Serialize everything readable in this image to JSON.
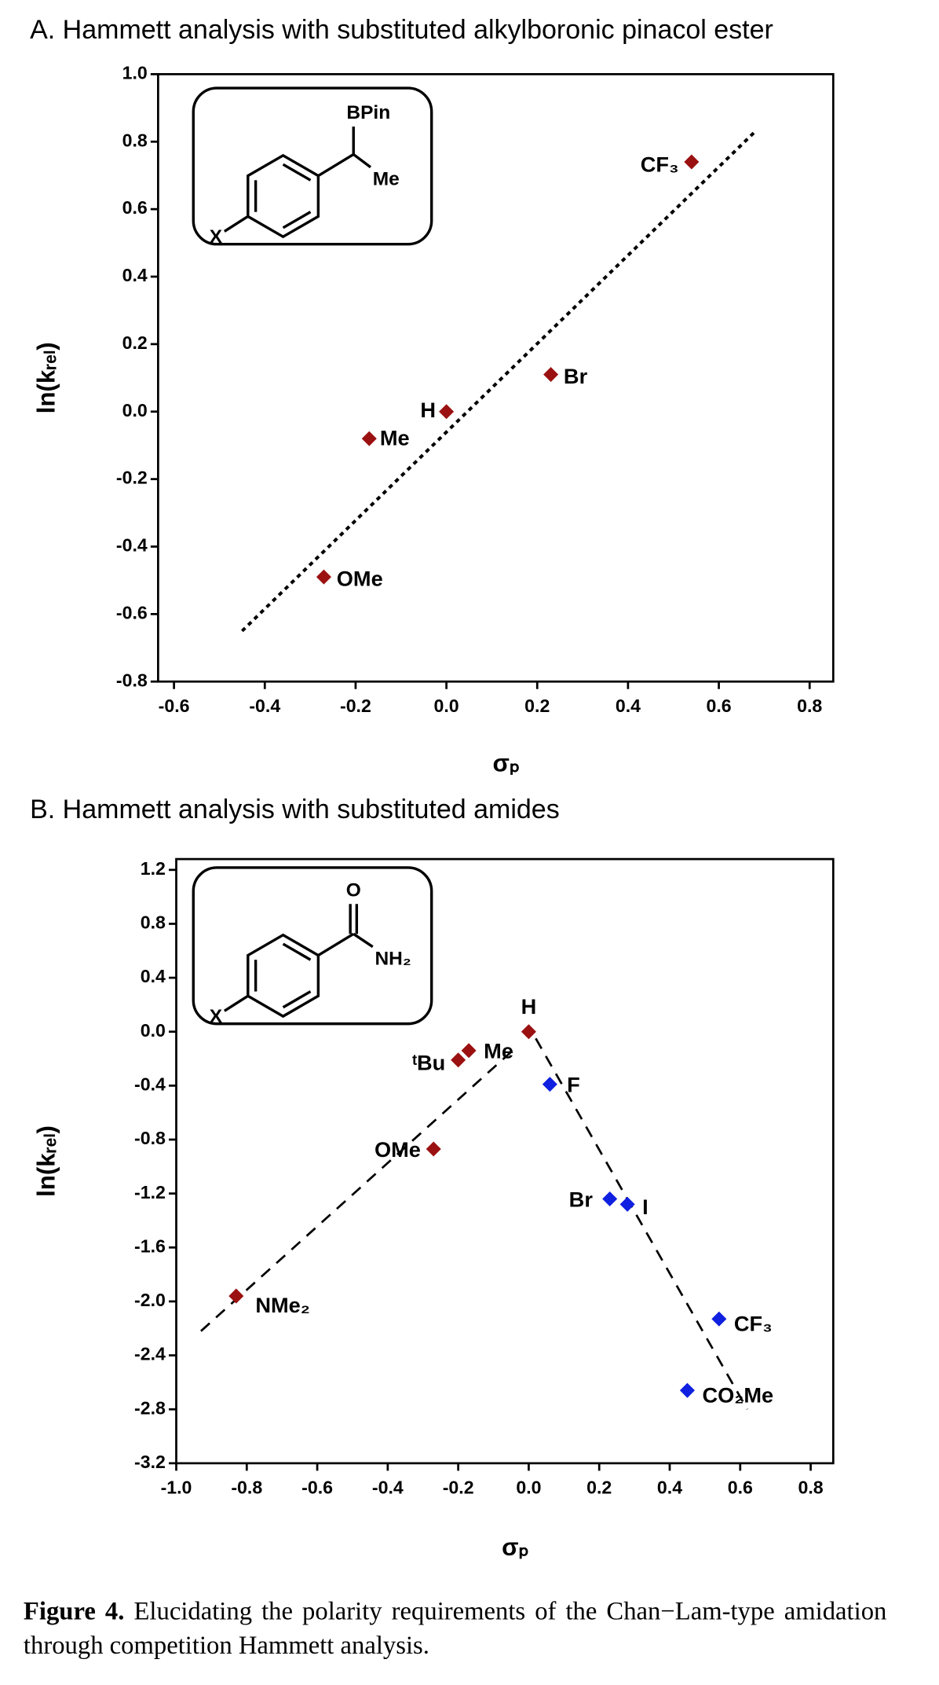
{
  "chart_data": [
    {
      "type": "scatter",
      "title": "A. Hammett analysis with substituted alkylboronic pinacol ester",
      "x_label": "σₚ",
      "y_label": "ln(kᵣₑₗ)",
      "xlim": [
        -0.635,
        0.852
      ],
      "ylim": [
        -0.8,
        1.0
      ],
      "xticks": [
        -0.6,
        -0.4,
        -0.2,
        {
          "value": 0,
          "label": "0.0"
        },
        0.2,
        0.4,
        0.6,
        0.8
      ],
      "yticks": [
        {
          "value": 1,
          "label": "1.0"
        },
        0.8,
        0.6,
        0.4,
        0.2,
        {
          "value": 0,
          "label": "0.0"
        },
        -0.2,
        -0.4,
        -0.6,
        -0.8
      ],
      "series": [
        {
          "color": "#9b1111",
          "x": [
            -0.27,
            -0.17,
            0,
            0.23,
            0.54
          ],
          "values": [
            -0.49,
            -0.08,
            0,
            0.11,
            0.74
          ],
          "labels": [
            "OMe",
            "Me",
            "H",
            "Br",
            "CF₃"
          ]
        }
      ],
      "fits": [
        {
          "x": [
            -0.45,
            0.68
          ],
          "values": [
            -0.65,
            0.83
          ]
        }
      ],
      "fit_style": "dotted",
      "inset_labels": [
        "BPin",
        "Me",
        "X"
      ]
    },
    {
      "type": "scatter",
      "title": "B. Hammett analysis with substituted amides",
      "x_label": "σₚ",
      "y_label": "ln(kᵣₑₗ)",
      "xlim": [
        -1.0,
        0.864
      ],
      "ylim": [
        -3.2,
        1.28
      ],
      "xticks": [
        {
          "value": -1,
          "label": "-1.0"
        },
        -0.8,
        -0.6,
        -0.4,
        -0.2,
        {
          "value": 0,
          "label": "0.0"
        },
        0.2,
        0.4,
        0.6,
        0.8
      ],
      "yticks": [
        1.2,
        0.8,
        0.4,
        {
          "value": 0,
          "label": "0.0"
        },
        -0.4,
        -0.8,
        -1.2,
        -1.6,
        {
          "value": -2,
          "label": "-2.0"
        },
        -2.4,
        -2.8,
        -3.2
      ],
      "series": [
        {
          "color": "#9b1111",
          "x": [
            -0.83,
            -0.27,
            -0.2,
            -0.17,
            0
          ],
          "values": [
            -1.96,
            -0.87,
            -0.21,
            -0.14,
            0
          ],
          "labels": [
            "NMe₂",
            "OMe",
            "ᵗBu",
            "Me",
            "H"
          ]
        },
        {
          "color": "#1020e0",
          "x": [
            0.06,
            0.23,
            0.28,
            0.54,
            0.45
          ],
          "values": [
            -0.39,
            -1.24,
            -1.28,
            -2.13,
            -2.66
          ],
          "labels": [
            "F",
            "Br",
            "I",
            "CF₃",
            "CO₂Me"
          ]
        }
      ],
      "fits": [
        {
          "x": [
            -0.93,
            -0.05
          ],
          "values": [
            -2.22,
            -0.15
          ]
        },
        {
          "x": [
            0.02,
            0.62
          ],
          "values": [
            -0.05,
            -2.8
          ]
        }
      ],
      "fit_style": "dashed",
      "inset_labels": [
        "O",
        "NH₂",
        "X"
      ]
    }
  ],
  "caption": {
    "label": "Figure 4.",
    "text": "Elucidating the polarity requirements of the Chan−Lam-type amidation through competition Hammett analysis."
  }
}
